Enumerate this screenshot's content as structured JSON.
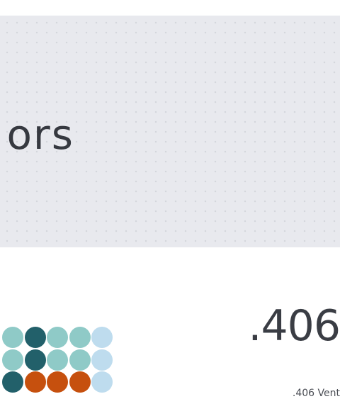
{
  "hero": {
    "title": "ors",
    "background": "#e8e9ee",
    "title_color": "#363940"
  },
  "stat": {
    "value": ".406",
    "caption": ".406 Vent"
  },
  "dot_grid": {
    "rows": [
      [
        "#8fcac7",
        "#22606a",
        "#8fcac7",
        "#8fcac7",
        "#bedcee"
      ],
      [
        "#8fcac7",
        "#22606a",
        "#8fcac7",
        "#8fcac7",
        "#bedcee"
      ],
      [
        "#22606a",
        "#c6500e",
        "#c6500e",
        "#c6500e",
        "#bedcee"
      ]
    ]
  }
}
